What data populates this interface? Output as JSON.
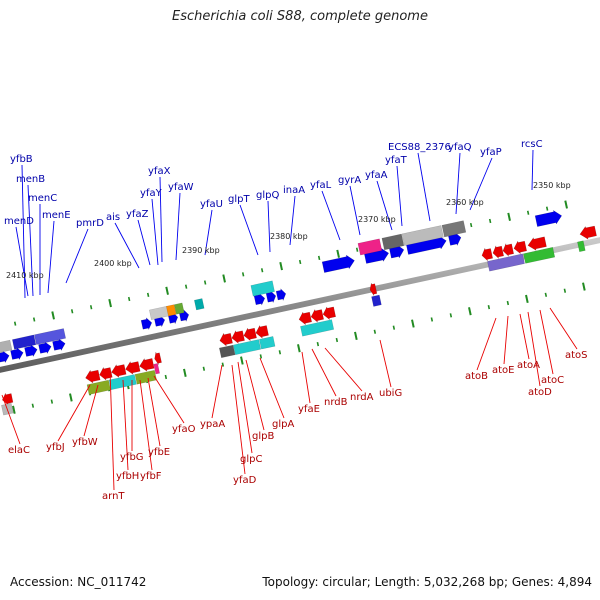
{
  "title": "Escherichia coli S88, complete genome",
  "footer": {
    "accession": "Accession: NC_011742",
    "summary": "Topology: circular; Length: 5,032,268 bp; Genes: 4,894"
  },
  "colors": {
    "forward": "#0000ee",
    "reverse": "#e80000",
    "backbone": "#888888",
    "tick": "#228b22"
  },
  "kbp_ticks": [
    "2410 kbp",
    "2400 kbp",
    "2390 kbp",
    "2380 kbp",
    "2370 kbp",
    "2360 kbp",
    "2350 kbp"
  ],
  "forward_genes": [
    "menD",
    "menE",
    "menC",
    "menB",
    "yfbB",
    "pmrD",
    "ais",
    "yfaZ",
    "yfaY",
    "yfaX",
    "yfaW",
    "yfaU",
    "glpT",
    "glpQ",
    "inaA",
    "yfaL",
    "gyrA",
    "yfaA",
    "yfaT",
    "ECS88_2376",
    "yfaQ",
    "yfaP",
    "rcsC"
  ],
  "reverse_genes": [
    "elaC",
    "yfbJ",
    "yfbW",
    "arnT",
    "yfbH",
    "yfbG",
    "yfbF",
    "yfbE",
    "yfaO",
    "ypaA",
    "yfaD",
    "glpC",
    "glpB",
    "glpA",
    "yfaE",
    "nrdB",
    "nrdA",
    "ubiG",
    "atoB",
    "atoE",
    "atoA",
    "atoD",
    "atoC",
    "atoS"
  ]
}
